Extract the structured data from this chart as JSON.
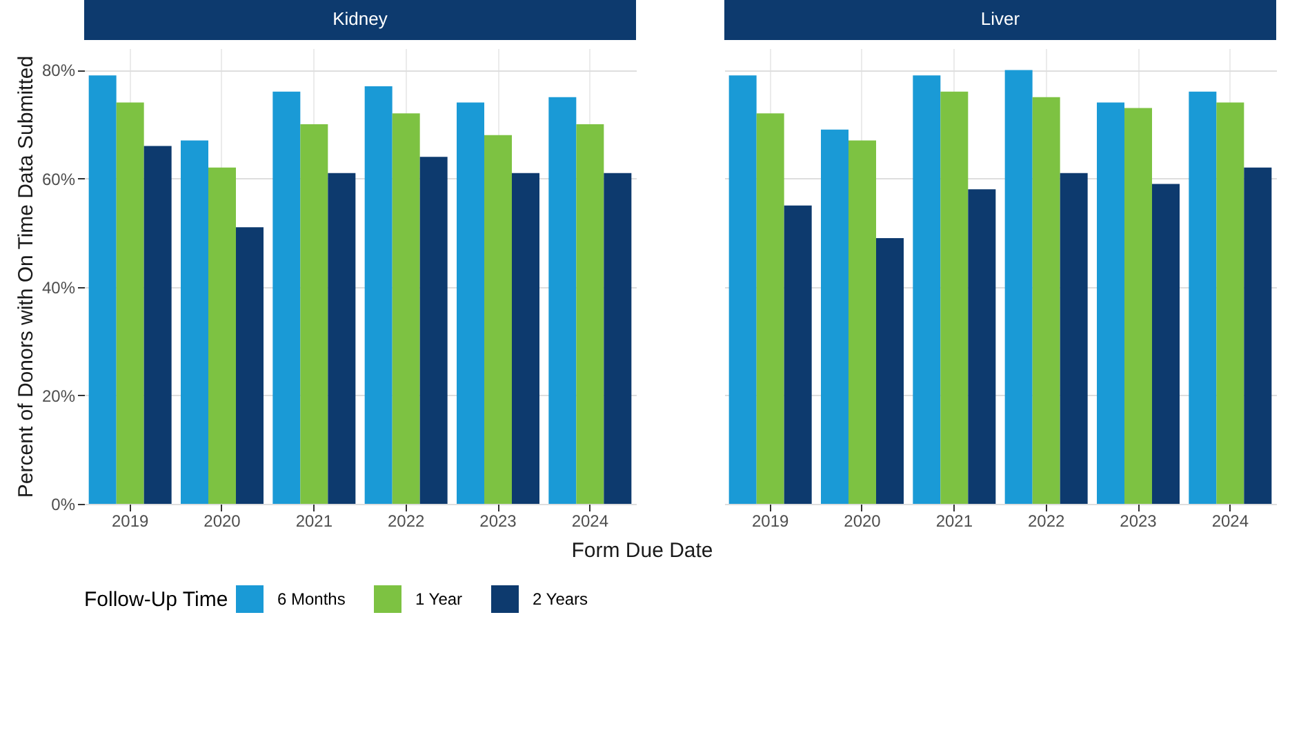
{
  "chart_data": [
    {
      "type": "bar",
      "title": "Kidney",
      "xlabel": "Form Due Date",
      "ylabel": "Percent of Donors with On Time Data Submitted",
      "legend_title": "Follow-Up Time",
      "legend": "bottom",
      "grid": true,
      "categories": [
        "2019",
        "2020",
        "2021",
        "2022",
        "2023",
        "2024"
      ],
      "ylim": [
        0,
        84
      ],
      "yticks": [
        {
          "value": 0,
          "label": "0%"
        },
        {
          "value": 20,
          "label": "20%"
        },
        {
          "value": 40,
          "label": "40%"
        },
        {
          "value": 60,
          "label": "60%"
        },
        {
          "value": 80,
          "label": "80%"
        }
      ],
      "series": [
        {
          "name": "6 Months",
          "color": "#1a9ad6",
          "values": [
            79,
            67,
            76,
            77,
            74,
            75
          ]
        },
        {
          "name": "1 Year",
          "color": "#7dc242",
          "values": [
            74,
            62,
            70,
            72,
            68,
            70
          ]
        },
        {
          "name": "2 Years",
          "color": "#0d3a6e",
          "values": [
            66,
            51,
            61,
            64,
            61,
            61
          ]
        }
      ]
    },
    {
      "type": "bar",
      "title": "Liver",
      "grid": true,
      "tick_labels": "x",
      "categories": [
        "2019",
        "2020",
        "2021",
        "2022",
        "2023",
        "2024"
      ],
      "ylim": [
        0,
        84
      ],
      "yticks": [
        {
          "value": 0,
          "label": null
        },
        {
          "value": 20,
          "label": null
        },
        {
          "value": 40,
          "label": null
        },
        {
          "value": 60,
          "label": null
        },
        {
          "value": 80,
          "label": null
        }
      ],
      "series": [
        {
          "name": "6 Months",
          "color": "#1a9ad6",
          "values": [
            79,
            69,
            79,
            80,
            74,
            76
          ]
        },
        {
          "name": "1 Year",
          "color": "#7dc242",
          "values": [
            72,
            67,
            76,
            75,
            73,
            74
          ]
        },
        {
          "name": "2 Years",
          "color": "#0d3a6e",
          "values": [
            55,
            49,
            58,
            61,
            59,
            62
          ]
        }
      ]
    }
  ]
}
